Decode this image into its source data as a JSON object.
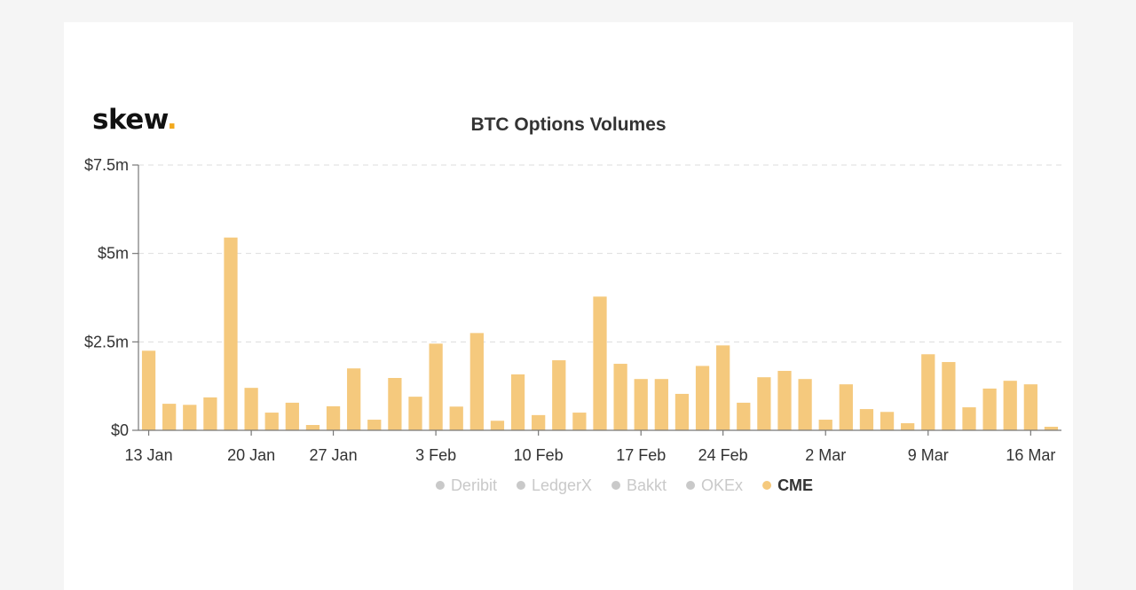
{
  "logo": {
    "text": "skew",
    "dot": "."
  },
  "colors": {
    "bar": "#f5c97d",
    "grid": "#dddddd",
    "axis": "#777777",
    "inactive": "#c9c9c9",
    "active": "#333333",
    "legend_dot_active": "#f5c97d",
    "logo_dot": "#f2a91e"
  },
  "chart_data": {
    "type": "bar",
    "title": "BTC Options Volumes",
    "yaxis": {
      "unit": "USD millions",
      "ylim": [
        0,
        7.5
      ],
      "ticks": [
        0,
        2.5,
        5,
        7.5
      ],
      "tick_labels": [
        "$0",
        "$2.5m",
        "$5m",
        "$7.5m"
      ]
    },
    "xaxis": {
      "tick_labels": [
        {
          "index": 0,
          "label": "13 Jan"
        },
        {
          "index": 5,
          "label": "20 Jan"
        },
        {
          "index": 9,
          "label": "27 Jan"
        },
        {
          "index": 14,
          "label": "3 Feb"
        },
        {
          "index": 19,
          "label": "10 Feb"
        },
        {
          "index": 24,
          "label": "17 Feb"
        },
        {
          "index": 28,
          "label": "24 Feb"
        },
        {
          "index": 33,
          "label": "2 Mar"
        },
        {
          "index": 38,
          "label": "9 Mar"
        },
        {
          "index": 43,
          "label": "16 Mar"
        }
      ]
    },
    "grid": true,
    "legend_position": "bottom",
    "legend": [
      {
        "name": "Deribit",
        "active": false
      },
      {
        "name": "LedgerX",
        "active": false
      },
      {
        "name": "Bakkt",
        "active": false
      },
      {
        "name": "OKEx",
        "active": false
      },
      {
        "name": "CME",
        "active": true
      }
    ],
    "series": [
      {
        "name": "CME",
        "values": [
          2.25,
          0.75,
          0.72,
          0.93,
          5.45,
          1.2,
          0.5,
          0.78,
          0.15,
          0.68,
          1.75,
          0.3,
          1.48,
          0.95,
          2.45,
          0.67,
          2.75,
          0.27,
          1.58,
          0.43,
          1.98,
          0.5,
          3.78,
          1.88,
          1.45,
          1.45,
          1.03,
          1.82,
          2.4,
          0.78,
          1.5,
          1.68,
          1.45,
          0.3,
          1.3,
          0.6,
          0.52,
          0.2,
          2.15,
          1.93,
          0.65,
          1.18,
          1.4,
          1.3,
          0.1
        ]
      }
    ]
  }
}
